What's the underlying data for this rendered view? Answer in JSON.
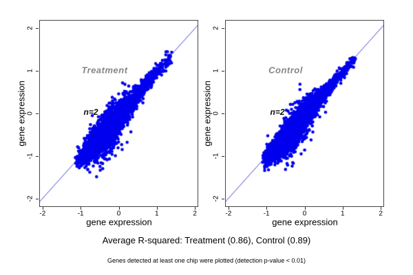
{
  "figure": {
    "background": "#ffffff",
    "caption": "Average R-squared: Treatment (0.86), Control (0.89)",
    "footnote": "Genes detected at least one chip were plotted (detection p-value < 0.01)"
  },
  "chart_data": [
    {
      "type": "scatter",
      "title": "Treatment",
      "annotation": "n=2",
      "r_squared": 0.86,
      "xlabel": "gene expression",
      "ylabel": "gene expression",
      "xlim": [
        -2.07,
        2.07
      ],
      "ylim": [
        -2.185,
        2.185
      ],
      "xticks": [
        -2,
        -1,
        0,
        1,
        2
      ],
      "yticks": [
        -2,
        -1,
        0,
        1,
        2
      ],
      "grid": false,
      "identity_line": true,
      "line_color": "#4343d8",
      "point_color": "#0000ee",
      "point_radius": 2.3,
      "cloud_model": {
        "comment": "dense blue comet-shaped cloud hugging the y=x line from (-1,-1) to (1.36,1.36), widest near (-0.25,-0.35), slight bias below the line, sparse outliers up to +/-0.7 off-diagonal",
        "seed": 42,
        "n": 3000,
        "uniform_frac": 0.18,
        "t_mean": -0.28,
        "t_sd": 0.5,
        "range": [
          -1.06,
          1.36
        ],
        "w_base": 0.055,
        "w_peak": 0.17,
        "w_center": -0.25,
        "w_span": 0.4,
        "below_bias": -0.5,
        "outlier_frac": 0.035,
        "x_jitter": 0.045
      }
    },
    {
      "type": "scatter",
      "title": "Control",
      "annotation": "n=2",
      "r_squared": 0.89,
      "xlabel": "gene expression",
      "ylabel": "gene expression",
      "xlim": [
        -2.07,
        2.07
      ],
      "ylim": [
        -2.185,
        2.185
      ],
      "xticks": [
        -2,
        -1,
        0,
        1,
        2
      ],
      "yticks": [
        -2,
        -1,
        0,
        1,
        2
      ],
      "grid": false,
      "identity_line": true,
      "line_color": "#4343d8",
      "point_color": "#0000ee",
      "point_radius": 2.3,
      "cloud_model": {
        "comment": "same comet cloud, slightly tighter (higher R-squared), from (-1,-1) to (1.3,1.3)",
        "seed": 99,
        "n": 3000,
        "uniform_frac": 0.18,
        "t_mean": -0.3,
        "t_sd": 0.48,
        "range": [
          -1.05,
          1.31
        ],
        "w_base": 0.05,
        "w_peak": 0.15,
        "w_center": -0.25,
        "w_span": 0.38,
        "below_bias": -0.5,
        "outlier_frac": 0.035,
        "x_jitter": 0.045
      }
    }
  ]
}
